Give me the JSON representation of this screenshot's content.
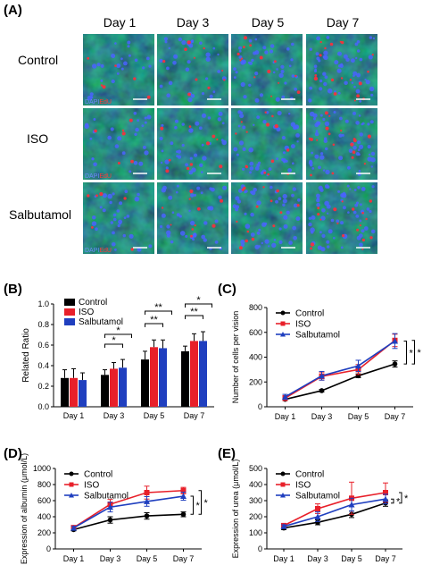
{
  "panel_labels": [
    "(A)",
    "(B)",
    "(C)",
    "(D)",
    "(E)"
  ],
  "panel_a": {
    "day_labels": [
      "Day 1",
      "Day 3",
      "Day 5",
      "Day 7"
    ],
    "row_labels": [
      "Control",
      "ISO",
      "Salbutamol"
    ],
    "stain_labels": [
      "DAPI",
      "EdU"
    ]
  },
  "colors": {
    "control": "#000000",
    "iso": "#e8202a",
    "salbutamol": "#1f3fbf"
  },
  "chart_data": [
    {
      "panel": "B",
      "type": "bar",
      "ylabel": "Related Ratio",
      "ylim": [
        0,
        1
      ],
      "yticks": [
        "0.0",
        "0.2",
        "0.4",
        "0.6",
        "0.8",
        "1.0"
      ],
      "categories": [
        "Day 1",
        "Day 3",
        "Day 5",
        "Day 7"
      ],
      "series": [
        {
          "name": "Control",
          "values": [
            0.28,
            0.31,
            0.46,
            0.54
          ],
          "err": [
            0.08,
            0.05,
            0.08,
            0.05
          ]
        },
        {
          "name": "ISO",
          "values": [
            0.28,
            0.37,
            0.58,
            0.64
          ],
          "err": [
            0.09,
            0.06,
            0.07,
            0.07
          ]
        },
        {
          "name": "Salbutamol",
          "values": [
            0.26,
            0.38,
            0.57,
            0.64
          ],
          "err": [
            0.07,
            0.08,
            0.08,
            0.09
          ]
        }
      ],
      "legend": "top-left",
      "annotations": [
        "*",
        "*",
        "**",
        "**",
        "*",
        "**"
      ]
    },
    {
      "panel": "C",
      "type": "line",
      "ylabel": "Number of cells per vision",
      "ylim": [
        0,
        800
      ],
      "yticks": [
        "0",
        "200",
        "400",
        "600",
        "800"
      ],
      "categories": [
        "Day 1",
        "Day 3",
        "Day 5",
        "Day 7"
      ],
      "series": [
        {
          "name": "Control",
          "values": [
            60,
            130,
            250,
            345
          ],
          "err": [
            10,
            10,
            15,
            25
          ]
        },
        {
          "name": "ISO",
          "values": [
            70,
            245,
            300,
            535
          ],
          "err": [
            20,
            30,
            40,
            50
          ]
        },
        {
          "name": "Salbutamol",
          "values": [
            80,
            250,
            330,
            530
          ],
          "err": [
            20,
            35,
            45,
            60
          ]
        }
      ],
      "legend": "top-left",
      "annotations": [
        "*",
        "*"
      ]
    },
    {
      "panel": "D",
      "type": "line",
      "ylabel": "Expression of albumin (μmol/L)",
      "ylim": [
        0,
        1000
      ],
      "yticks": [
        "0",
        "200",
        "400",
        "600",
        "800",
        "1000"
      ],
      "categories": [
        "Day 1",
        "Day 3",
        "Day 5",
        "Day 7"
      ],
      "series": [
        {
          "name": "Control",
          "values": [
            240,
            360,
            410,
            430
          ],
          "err": [
            15,
            40,
            40,
            30
          ]
        },
        {
          "name": "ISO",
          "values": [
            265,
            555,
            700,
            725
          ],
          "err": [
            20,
            60,
            80,
            40
          ]
        },
        {
          "name": "Salbutamol",
          "values": [
            260,
            520,
            590,
            655
          ],
          "err": [
            20,
            60,
            60,
            50
          ]
        }
      ],
      "legend": "top-left",
      "annotations": [
        "*",
        "*"
      ]
    },
    {
      "panel": "E",
      "type": "line",
      "ylabel": "Expression of urea (μmol/L)",
      "ylim": [
        0,
        500
      ],
      "yticks": [
        "0",
        "100",
        "200",
        "300",
        "400",
        "500"
      ],
      "categories": [
        "Day 1",
        "Day 3",
        "Day 5",
        "Day 7"
      ],
      "series": [
        {
          "name": "Control",
          "values": [
            130,
            165,
            215,
            285
          ],
          "err": [
            10,
            15,
            20,
            20
          ]
        },
        {
          "name": "ISO",
          "values": [
            145,
            250,
            315,
            350
          ],
          "err": [
            10,
            30,
            100,
            60
          ]
        },
        {
          "name": "Salbutamol",
          "values": [
            140,
            200,
            275,
            310
          ],
          "err": [
            10,
            30,
            40,
            30
          ]
        }
      ],
      "legend": "top-left",
      "annotations": [
        "*",
        "*"
      ]
    }
  ]
}
